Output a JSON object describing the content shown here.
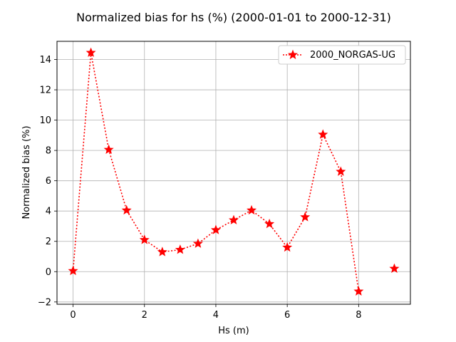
{
  "chart_data": {
    "type": "line",
    "title": "Normalized bias for hs (%) (2000-01-01 to 2000-12-31)",
    "xlabel": "Hs (m)",
    "ylabel": "Normalized bias (%)",
    "xlim": [
      -0.45,
      9.45
    ],
    "ylim": [
      -2.15,
      15.2
    ],
    "xticks": [
      0,
      2,
      4,
      6,
      8
    ],
    "yticks": [
      -2,
      0,
      2,
      4,
      6,
      8,
      10,
      12,
      14
    ],
    "grid": true,
    "legend_position": "upper right",
    "series": [
      {
        "name": "2000_NORGAS-UG",
        "color": "#ff0000",
        "line_style": "dotted",
        "marker": "star",
        "x": [
          0,
          0.5,
          1,
          1.5,
          2,
          2.5,
          3,
          3.5,
          4,
          4.5,
          5,
          5.5,
          6,
          6.5,
          7,
          7.5,
          8,
          8.5,
          9
        ],
        "y": [
          0.05,
          14.45,
          8.05,
          4.05,
          2.1,
          1.3,
          1.45,
          1.85,
          2.75,
          3.4,
          4.05,
          3.15,
          1.6,
          3.6,
          9.05,
          6.6,
          -1.3,
          null,
          0.2
        ]
      }
    ]
  }
}
